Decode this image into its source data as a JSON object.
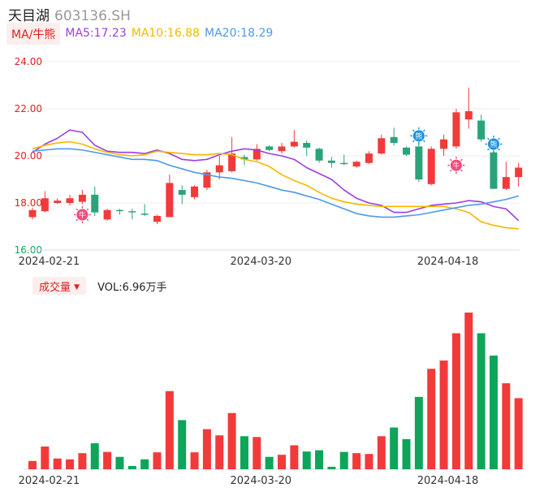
{
  "header": {
    "name": "天目湖",
    "code": "603136.SH"
  },
  "ma_legend": {
    "tag": "MA/牛熊",
    "items": [
      {
        "label": "MA5:17.23",
        "color": "#9b3fe0"
      },
      {
        "label": "MA10:16.88",
        "color": "#f5b800"
      },
      {
        "label": "MA20:18.29",
        "color": "#4c9aeb"
      }
    ]
  },
  "volume_legend": {
    "tag": "成交量",
    "tag_arrow": "▼",
    "value_label": "VOL:6.96万手"
  },
  "colors": {
    "up": "#f23a3a",
    "down": "#0ea55b",
    "down_candle": "#2aa37a",
    "axis_text": "#e02020",
    "axis_text_low": "#0ea55b",
    "date_text": "#333333",
    "grid": "#eeeeee"
  },
  "chart_data": [
    {
      "type": "candlestick",
      "title": "",
      "ylim": [
        16,
        24
      ],
      "yticks": [
        "24.00",
        "22.00",
        "20.00",
        "18.00",
        "16.00"
      ],
      "xtick_labels": [
        {
          "label": "2024-02-21",
          "index": 1
        },
        {
          "label": "2024-03-20",
          "index": 18
        },
        {
          "label": "2024-04-18",
          "index": 33
        }
      ],
      "markers": [
        {
          "type": "bull",
          "glyph": "牛",
          "color": "#f04a7a",
          "index": 4,
          "y": 17.5
        },
        {
          "type": "bear",
          "glyph": "熊",
          "color": "#1a8fe0",
          "index": 31,
          "y": 20.85
        },
        {
          "type": "bull",
          "glyph": "牛",
          "color": "#f04a7a",
          "index": 34,
          "y": 19.6
        },
        {
          "type": "bear",
          "glyph": "熊",
          "color": "#1a8fe0",
          "index": 37,
          "y": 20.5
        }
      ],
      "candles": [
        {
          "o": 17.4,
          "c": 17.7,
          "h": 17.8,
          "l": 17.3
        },
        {
          "o": 17.65,
          "c": 18.2,
          "h": 18.5,
          "l": 17.6
        },
        {
          "o": 18.0,
          "c": 18.1,
          "h": 18.2,
          "l": 17.95
        },
        {
          "o": 18.0,
          "c": 18.2,
          "h": 18.35,
          "l": 17.9
        },
        {
          "o": 18.05,
          "c": 18.35,
          "h": 18.55,
          "l": 17.95
        },
        {
          "o": 18.35,
          "c": 17.6,
          "h": 18.7,
          "l": 17.45
        },
        {
          "o": 17.3,
          "c": 17.7,
          "h": 17.75,
          "l": 17.25
        },
        {
          "o": 17.7,
          "c": 17.65,
          "h": 17.75,
          "l": 17.5
        },
        {
          "o": 17.65,
          "c": 17.6,
          "h": 17.75,
          "l": 17.3
        },
        {
          "o": 17.55,
          "c": 17.5,
          "h": 17.95,
          "l": 17.45
        },
        {
          "o": 17.2,
          "c": 17.45,
          "h": 17.5,
          "l": 17.1
        },
        {
          "o": 17.4,
          "c": 18.85,
          "h": 19.2,
          "l": 17.4
        },
        {
          "o": 18.55,
          "c": 18.35,
          "h": 18.75,
          "l": 17.95
        },
        {
          "o": 18.25,
          "c": 18.7,
          "h": 18.75,
          "l": 18.15
        },
        {
          "o": 18.65,
          "c": 19.3,
          "h": 19.4,
          "l": 18.55
        },
        {
          "o": 19.3,
          "c": 19.6,
          "h": 20.0,
          "l": 19.0
        },
        {
          "o": 19.35,
          "c": 20.1,
          "h": 20.8,
          "l": 19.3
        },
        {
          "o": 19.95,
          "c": 19.85,
          "h": 20.05,
          "l": 19.6
        },
        {
          "o": 19.85,
          "c": 20.3,
          "h": 20.5,
          "l": 19.8
        },
        {
          "o": 20.4,
          "c": 20.25,
          "h": 20.45,
          "l": 20.2
        },
        {
          "o": 20.2,
          "c": 20.4,
          "h": 20.55,
          "l": 20.1
        },
        {
          "o": 20.4,
          "c": 20.6,
          "h": 21.1,
          "l": 20.35
        },
        {
          "o": 20.55,
          "c": 20.35,
          "h": 20.65,
          "l": 20.0
        },
        {
          "o": 20.3,
          "c": 19.8,
          "h": 20.35,
          "l": 19.7
        },
        {
          "o": 19.8,
          "c": 19.7,
          "h": 19.95,
          "l": 19.5
        },
        {
          "o": 19.7,
          "c": 19.65,
          "h": 20.05,
          "l": 19.6
        },
        {
          "o": 19.55,
          "c": 19.75,
          "h": 19.8,
          "l": 19.5
        },
        {
          "o": 19.7,
          "c": 20.1,
          "h": 20.2,
          "l": 19.65
        },
        {
          "o": 20.1,
          "c": 20.75,
          "h": 20.9,
          "l": 20.05
        },
        {
          "o": 20.8,
          "c": 20.55,
          "h": 21.2,
          "l": 20.45
        },
        {
          "o": 20.35,
          "c": 20.05,
          "h": 20.4,
          "l": 20.0
        },
        {
          "o": 20.4,
          "c": 19.0,
          "h": 20.6,
          "l": 18.9
        },
        {
          "o": 18.8,
          "c": 20.3,
          "h": 20.4,
          "l": 18.75
        },
        {
          "o": 20.3,
          "c": 20.7,
          "h": 20.9,
          "l": 20.0
        },
        {
          "o": 20.4,
          "c": 21.85,
          "h": 22.0,
          "l": 20.3
        },
        {
          "o": 21.55,
          "c": 21.9,
          "h": 22.9,
          "l": 21.15
        },
        {
          "o": 21.5,
          "c": 20.7,
          "h": 21.75,
          "l": 20.6
        },
        {
          "o": 20.15,
          "c": 18.6,
          "h": 20.25,
          "l": 18.6
        },
        {
          "o": 18.6,
          "c": 19.1,
          "h": 19.75,
          "l": 18.55
        },
        {
          "o": 19.1,
          "c": 19.5,
          "h": 19.7,
          "l": 18.7
        }
      ],
      "series": [
        {
          "name": "MA5",
          "color": "#9b3fe0",
          "values": [
            20.15,
            20.5,
            20.75,
            21.1,
            21.0,
            20.45,
            20.2,
            20.15,
            20.15,
            20.1,
            20.25,
            20.1,
            19.85,
            19.8,
            19.85,
            20.05,
            20.2,
            20.3,
            20.25,
            20.1,
            20.0,
            19.85,
            19.5,
            19.25,
            19.0,
            18.55,
            18.2,
            18.0,
            17.9,
            17.6,
            17.6,
            17.75,
            17.9,
            17.95,
            18.0,
            18.1,
            18.05,
            17.85,
            17.75,
            17.25
          ]
        },
        {
          "name": "MA10",
          "color": "#f5b800",
          "values": [
            20.3,
            20.45,
            20.55,
            20.6,
            20.5,
            20.3,
            20.15,
            20.05,
            20.0,
            20.05,
            20.2,
            20.15,
            20.1,
            20.05,
            20.05,
            20.1,
            20.05,
            19.85,
            19.75,
            19.55,
            19.2,
            18.95,
            18.75,
            18.45,
            18.2,
            18.05,
            17.95,
            17.9,
            17.85,
            17.85,
            17.85,
            17.85,
            17.85,
            17.85,
            17.75,
            17.6,
            17.2,
            17.05,
            16.95,
            16.9
          ]
        },
        {
          "name": "MA20",
          "color": "#4c9aeb",
          "values": [
            20.2,
            20.25,
            20.3,
            20.3,
            20.25,
            20.15,
            20.05,
            19.95,
            19.85,
            19.85,
            19.8,
            19.6,
            19.45,
            19.3,
            19.2,
            19.1,
            19.05,
            18.95,
            18.85,
            18.7,
            18.55,
            18.45,
            18.3,
            18.15,
            17.95,
            17.75,
            17.55,
            17.45,
            17.4,
            17.4,
            17.45,
            17.5,
            17.6,
            17.7,
            17.8,
            17.9,
            17.95,
            18.05,
            18.15,
            18.3
          ]
        }
      ]
    },
    {
      "type": "bar",
      "title": "",
      "series": [
        {
          "name": "VOL",
          "values": [
            1.0,
            2.75,
            1.3,
            1.2,
            1.95,
            3.15,
            2.1,
            1.5,
            0.4,
            1.2,
            2.05,
            9.45,
            5.95,
            2.05,
            4.85,
            4.1,
            6.8,
            4.0,
            3.9,
            1.5,
            1.75,
            2.9,
            2.15,
            2.3,
            0.3,
            2.1,
            1.95,
            1.85,
            4.0,
            5.05,
            3.65,
            8.75,
            12.15,
            13.15,
            16.45,
            18.95,
            16.45,
            13.75,
            10.4,
            8.6
          ]
        }
      ]
    }
  ]
}
